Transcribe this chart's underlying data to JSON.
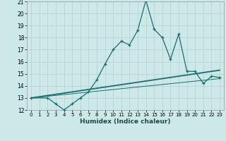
{
  "xlabel": "Humidex (Indice chaleur)",
  "bg_color": "#cce8e8",
  "grid_color": "#b8d4d4",
  "line_color": "#1a6e6e",
  "xlim": [
    -0.5,
    23.5
  ],
  "ylim": [
    12,
    21
  ],
  "xticks": [
    0,
    1,
    2,
    3,
    4,
    5,
    6,
    7,
    8,
    9,
    10,
    11,
    12,
    13,
    14,
    15,
    16,
    17,
    18,
    19,
    20,
    21,
    22,
    23
  ],
  "yticks": [
    12,
    13,
    14,
    15,
    16,
    17,
    18,
    19,
    20,
    21
  ],
  "main_x": [
    0,
    2,
    3,
    4,
    5,
    6,
    7,
    8,
    9,
    10,
    11,
    12,
    13,
    14,
    15,
    16,
    17,
    18,
    19,
    20,
    21,
    22,
    23
  ],
  "main_y": [
    13,
    13,
    12.5,
    12,
    12.5,
    13,
    13.5,
    14.5,
    15.8,
    17,
    17.7,
    17.4,
    18.6,
    21.1,
    18.7,
    18,
    16.2,
    18.3,
    15.2,
    15.2,
    14.2,
    14.8,
    14.7
  ],
  "line1_x": [
    0,
    23
  ],
  "line1_y": [
    13.0,
    15.3
  ],
  "line2_x": [
    0,
    23
  ],
  "line2_y": [
    13.0,
    14.6
  ]
}
